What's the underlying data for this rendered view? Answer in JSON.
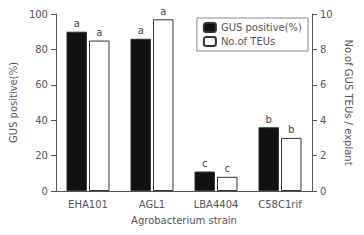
{
  "chart_data": {
    "type": "bar",
    "categories": [
      "EHA101",
      "AGL1",
      "LBA4404",
      "C58C1rif"
    ],
    "xlabel": "Agrobacterium strain",
    "ylabel": "GUS positive(%)",
    "y2label": "No.of GUS TEUs / explant",
    "series": [
      {
        "name": "GUS positive(%)",
        "color": "#111111",
        "values": [
          90,
          86,
          11,
          36
        ],
        "annotations": [
          "a",
          "a",
          "c",
          "b"
        ]
      },
      {
        "name": "No.of TEUs",
        "color": "#ffffff",
        "axis": "y2",
        "values": [
          8.5,
          9.7,
          0.8,
          3.0
        ],
        "annotations": [
          "a",
          "a",
          "c",
          "b"
        ]
      }
    ],
    "ylim": [
      0,
      100
    ],
    "yticks": [
      0,
      20,
      40,
      60,
      80,
      100
    ],
    "y2lim": [
      0,
      10
    ],
    "y2ticks": [
      0,
      2,
      4,
      6,
      8,
      10
    ],
    "legend": "upper right"
  }
}
